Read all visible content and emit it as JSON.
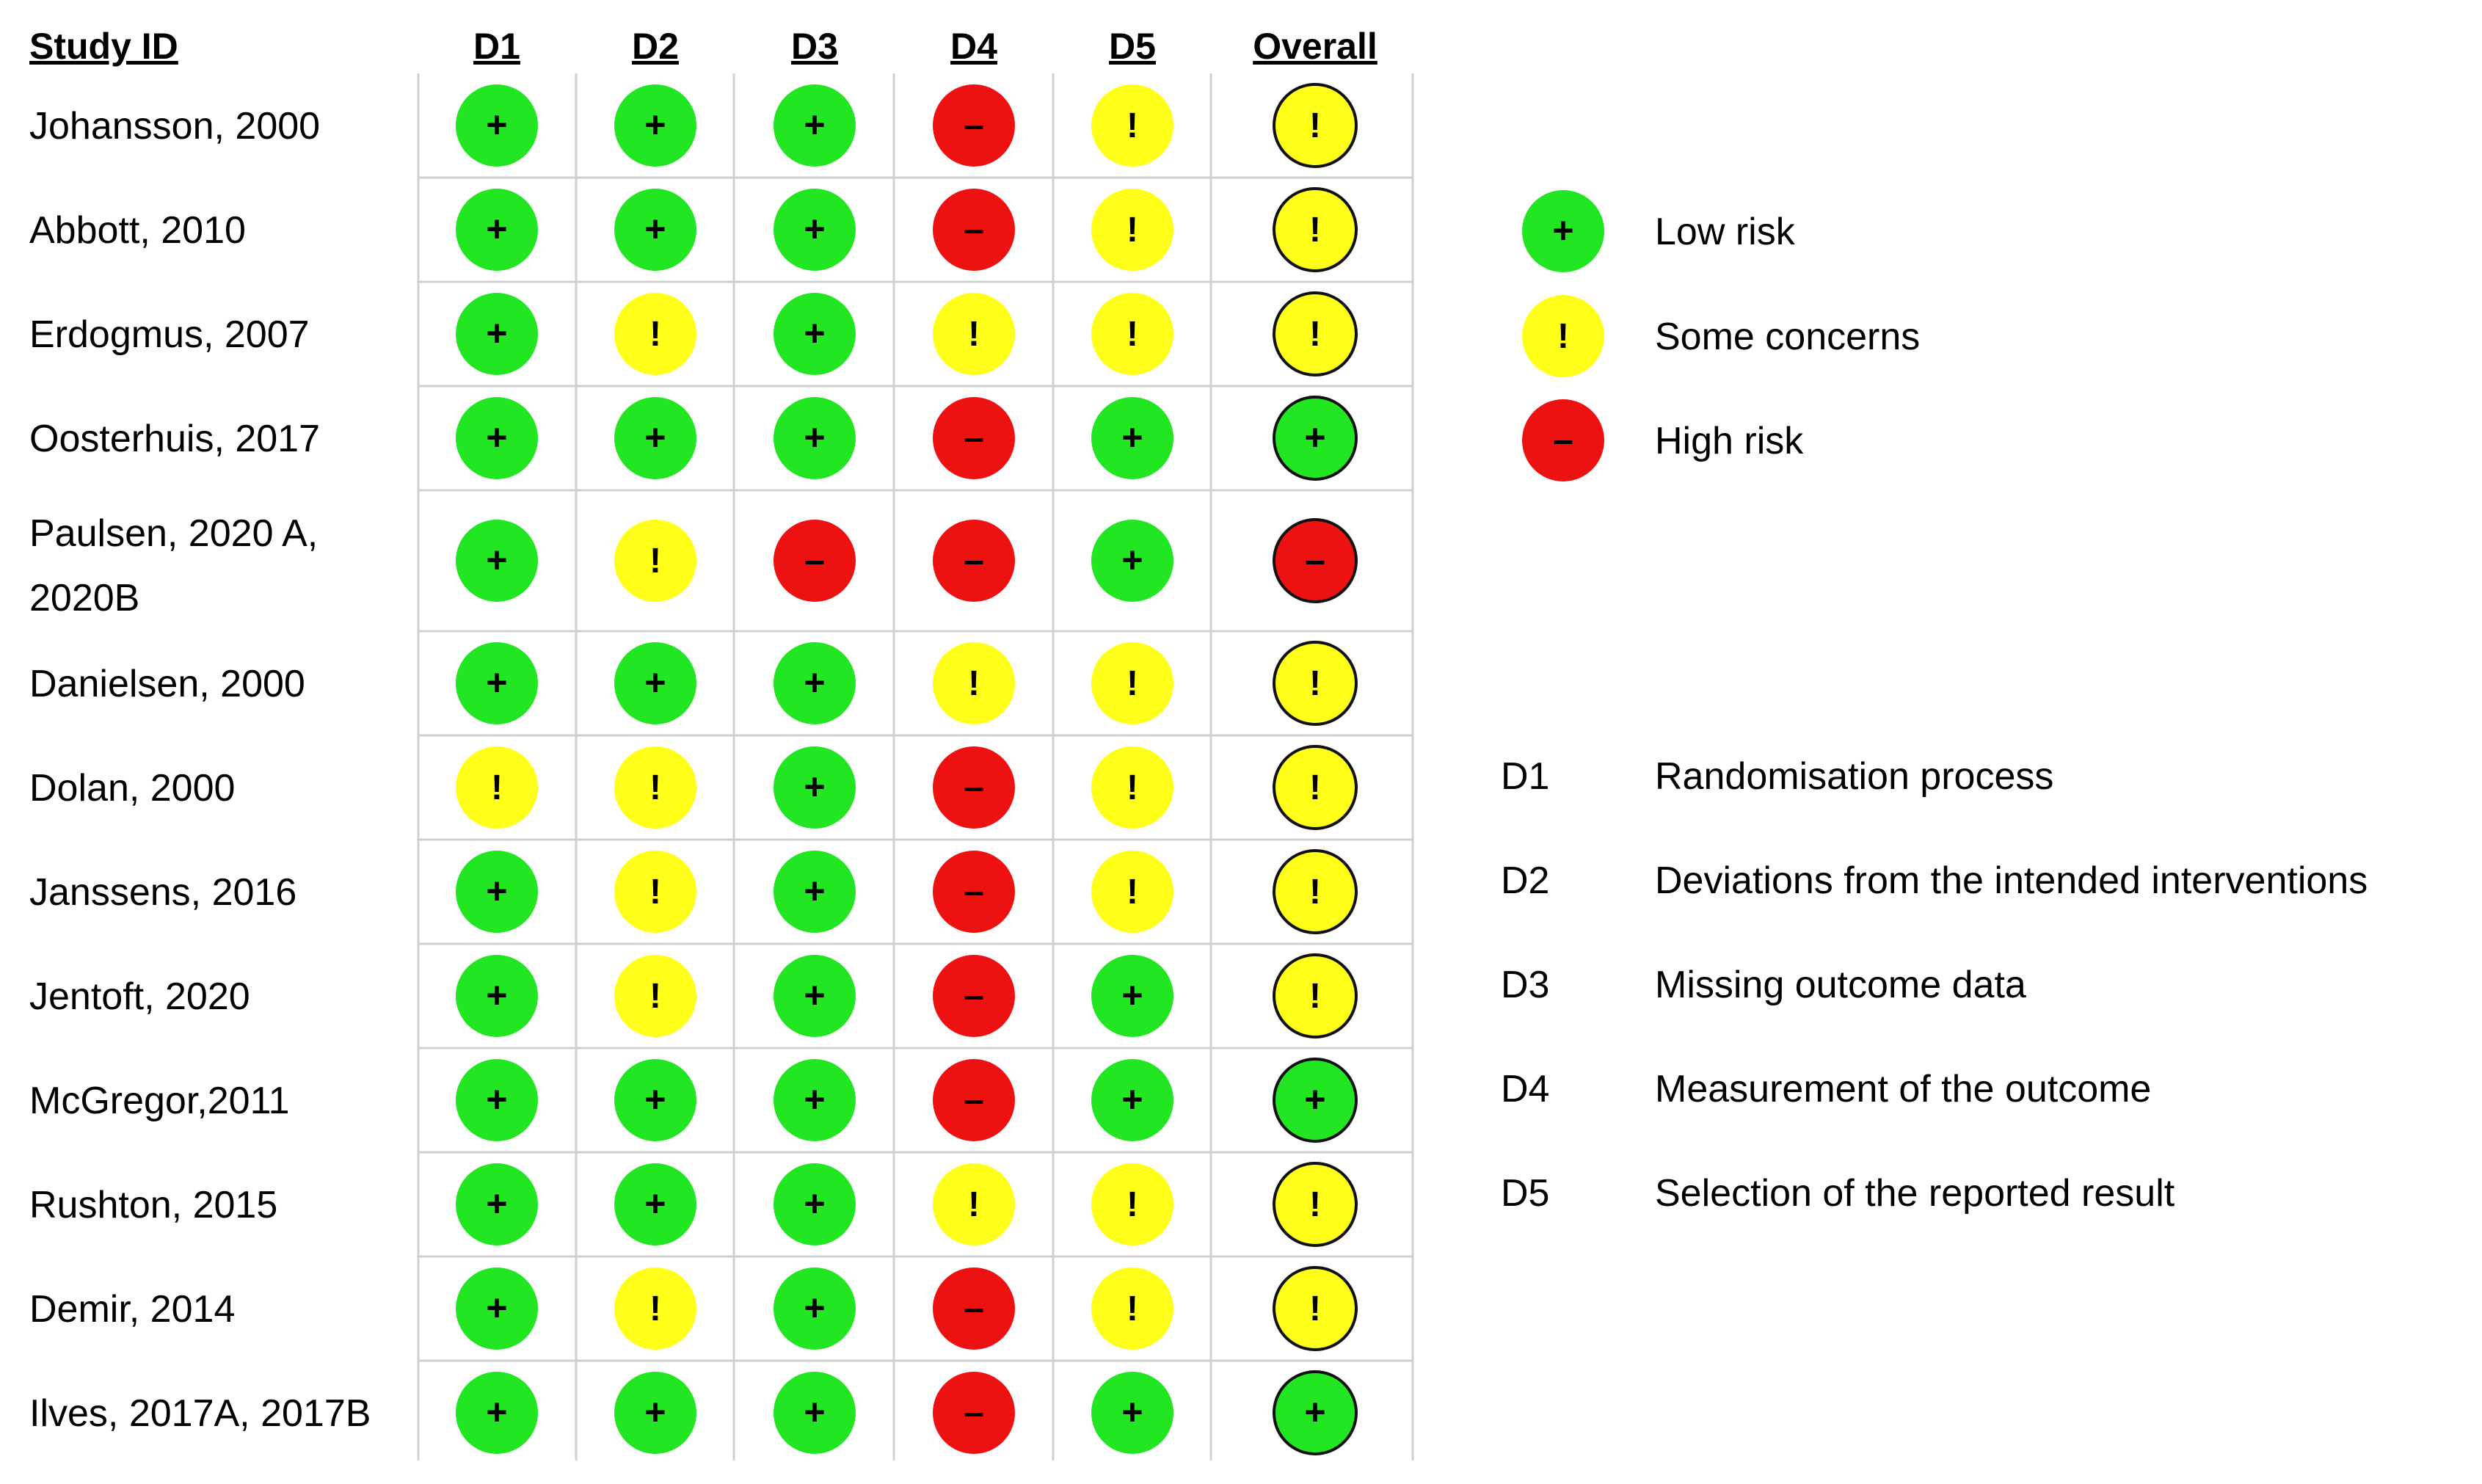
{
  "chart_data": {
    "type": "table",
    "columns": [
      "Study ID",
      "D1",
      "D2",
      "D3",
      "D4",
      "D5",
      "Overall"
    ],
    "rows": [
      {
        "study": "Johansson, 2000",
        "judgements": [
          "low",
          "low",
          "low",
          "high",
          "some",
          "some"
        ]
      },
      {
        "study": "Abbott, 2010",
        "judgements": [
          "low",
          "low",
          "low",
          "high",
          "some",
          "some"
        ]
      },
      {
        "study": "Erdogmus, 2007",
        "judgements": [
          "low",
          "some",
          "low",
          "some",
          "some",
          "some"
        ]
      },
      {
        "study": "Oosterhuis, 2017",
        "judgements": [
          "low",
          "low",
          "low",
          "high",
          "low",
          "low"
        ]
      },
      {
        "study": "Paulsen, 2020 A, 2020B",
        "study_lines": [
          "Paulsen, 2020 A,",
          "2020B"
        ],
        "judgements": [
          "low",
          "some",
          "high",
          "high",
          "low",
          "high"
        ]
      },
      {
        "study": "Danielsen, 2000",
        "judgements": [
          "low",
          "low",
          "low",
          "some",
          "some",
          "some"
        ]
      },
      {
        "study": "Dolan, 2000",
        "judgements": [
          "some",
          "some",
          "low",
          "high",
          "some",
          "some"
        ]
      },
      {
        "study": "Janssens, 2016",
        "judgements": [
          "low",
          "some",
          "low",
          "high",
          "some",
          "some"
        ]
      },
      {
        "study": "Jentoft, 2020",
        "judgements": [
          "low",
          "some",
          "low",
          "high",
          "low",
          "some"
        ]
      },
      {
        "study": "McGregor,2011",
        "judgements": [
          "low",
          "low",
          "low",
          "high",
          "low",
          "low"
        ]
      },
      {
        "study": "Rushton, 2015",
        "judgements": [
          "low",
          "low",
          "low",
          "some",
          "some",
          "some"
        ]
      },
      {
        "study": "Demir, 2014",
        "judgements": [
          "low",
          "some",
          "low",
          "high",
          "some",
          "some"
        ]
      },
      {
        "study": "Ilves, 2017A, 2017B",
        "judgements": [
          "low",
          "low",
          "low",
          "high",
          "low",
          "low"
        ]
      }
    ],
    "legend": [
      {
        "key": "low",
        "label": "Low risk",
        "symbol": "+",
        "color": "#22e622"
      },
      {
        "key": "some",
        "label": "Some concerns",
        "symbol": "!",
        "color": "#ffff1a"
      },
      {
        "key": "high",
        "label": "High risk",
        "symbol": "–",
        "color": "#ee1111"
      }
    ],
    "domains": [
      {
        "code": "D1",
        "label": "Randomisation process"
      },
      {
        "code": "D2",
        "label": "Deviations from the intended interventions"
      },
      {
        "code": "D3",
        "label": "Missing outcome data"
      },
      {
        "code": "D4",
        "label": "Measurement of the outcome"
      },
      {
        "code": "D5",
        "label": "Selection of the reported result"
      }
    ]
  }
}
